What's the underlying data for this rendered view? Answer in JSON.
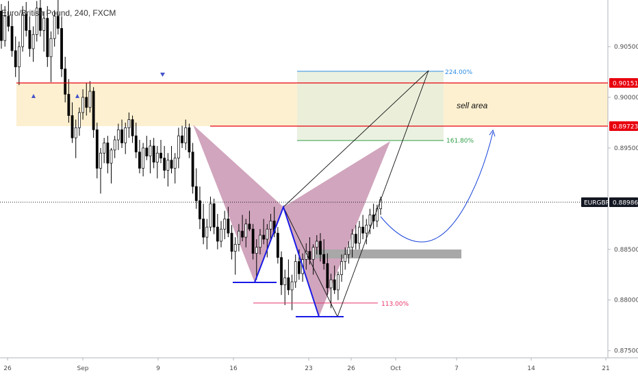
{
  "symbol_title": "Euro/British Pound, 240, FXCM",
  "annotation": "sell area",
  "colors": {
    "up": "#ffffff",
    "down": "#000000",
    "zone": "#fdf0d0",
    "resistance": "#e8000d",
    "bat_fill": "#c995b2",
    "pattern": "#1919e6",
    "projection": "#1742d8",
    "fib_224": "#2d8de3",
    "fib_1618": "#2e9e46",
    "fib_113": "#e8326a",
    "demand": "#a8a8a8",
    "last_price": "#131722"
  },
  "chart_data": {
    "type": "candlestick",
    "title": "Euro/British Pound, 240, FXCM",
    "symbol": "EURGBP",
    "last_price": 0.88986,
    "ylim": [
      0.8743,
      0.9096
    ],
    "y_ticks": [
      "0.90500",
      "0.90000",
      "0.89500",
      "0.88500",
      "0.88000",
      "0.87500"
    ],
    "x_ticks": [
      "26",
      "Sep",
      "9",
      "16",
      "23",
      "26",
      "Oct",
      "7",
      "14",
      "21"
    ],
    "price_tags": [
      {
        "label": "0.90151",
        "value": 0.90151
      },
      {
        "label": "0.89723",
        "value": 0.89723
      },
      {
        "label": "EURGBP",
        "value": 0.88986,
        "kind": "symbol"
      },
      {
        "label": "0.88986",
        "value": 0.88986
      }
    ],
    "zones": [
      {
        "name": "sell area",
        "from": 0.89723,
        "to": 0.90151
      }
    ],
    "fib_levels": [
      {
        "label": "224.00%",
        "value": 0.9025
      },
      {
        "label": "161.80%",
        "value": 0.8961
      },
      {
        "label": "113.00%",
        "value": 0.8801
      }
    ],
    "candles": [
      [
        0.9085,
        0.9092,
        0.9048,
        0.9056
      ],
      [
        0.9056,
        0.909,
        0.905,
        0.908
      ],
      [
        0.908,
        0.9095,
        0.9065,
        0.907
      ],
      [
        0.907,
        0.9082,
        0.904,
        0.9046
      ],
      [
        0.9046,
        0.906,
        0.902,
        0.903
      ],
      [
        0.903,
        0.9055,
        0.9012,
        0.905
      ],
      [
        0.905,
        0.909,
        0.9045,
        0.9082
      ],
      [
        0.9082,
        0.9094,
        0.906,
        0.9066
      ],
      [
        0.9066,
        0.908,
        0.904,
        0.9048
      ],
      [
        0.9048,
        0.907,
        0.9035,
        0.9062
      ],
      [
        0.9062,
        0.9095,
        0.9055,
        0.9088
      ],
      [
        0.9088,
        0.9096,
        0.906,
        0.9066
      ],
      [
        0.9066,
        0.9085,
        0.9045,
        0.9078
      ],
      [
        0.9078,
        0.909,
        0.903,
        0.904
      ],
      [
        0.904,
        0.9065,
        0.9015,
        0.9058
      ],
      [
        0.9058,
        0.9086,
        0.905,
        0.908
      ],
      [
        0.908,
        0.9096,
        0.9062,
        0.9068
      ],
      [
        0.9068,
        0.908,
        0.902,
        0.9028
      ],
      [
        0.9028,
        0.904,
        0.8995,
        0.9003
      ],
      [
        0.9003,
        0.9018,
        0.8975,
        0.8982
      ],
      [
        0.8982,
        0.8995,
        0.8955,
        0.896
      ],
      [
        0.896,
        0.8978,
        0.894,
        0.897
      ],
      [
        0.897,
        0.899,
        0.8962,
        0.8985
      ],
      [
        0.8985,
        0.9008,
        0.8978,
        0.9
      ],
      [
        0.9,
        0.9014,
        0.8982,
        0.899
      ],
      [
        0.899,
        0.9016,
        0.8985,
        0.9006
      ],
      [
        0.9006,
        0.901,
        0.896,
        0.8968
      ],
      [
        0.8968,
        0.8975,
        0.892,
        0.893
      ],
      [
        0.893,
        0.895,
        0.8905,
        0.8945
      ],
      [
        0.8945,
        0.896,
        0.8935,
        0.8955
      ],
      [
        0.8955,
        0.8962,
        0.8925,
        0.8935
      ],
      [
        0.8935,
        0.895,
        0.8915,
        0.8948
      ],
      [
        0.8948,
        0.8962,
        0.894,
        0.8958
      ],
      [
        0.8958,
        0.8974,
        0.8948,
        0.8968
      ],
      [
        0.8968,
        0.8978,
        0.895,
        0.8955
      ],
      [
        0.8955,
        0.8975,
        0.8944,
        0.897
      ],
      [
        0.897,
        0.8985,
        0.896,
        0.8978
      ],
      [
        0.8978,
        0.8982,
        0.8955,
        0.8962
      ],
      [
        0.8962,
        0.8975,
        0.894,
        0.8946
      ],
      [
        0.8946,
        0.8958,
        0.8925,
        0.893
      ],
      [
        0.893,
        0.8955,
        0.8922,
        0.895
      ],
      [
        0.895,
        0.8962,
        0.8938,
        0.8942
      ],
      [
        0.8942,
        0.8958,
        0.8925,
        0.8952
      ],
      [
        0.8952,
        0.896,
        0.893,
        0.8936
      ],
      [
        0.8936,
        0.8952,
        0.892,
        0.8945
      ],
      [
        0.8945,
        0.8958,
        0.8935,
        0.894
      ],
      [
        0.894,
        0.8952,
        0.892,
        0.8928
      ],
      [
        0.8928,
        0.8945,
        0.8912,
        0.8938
      ],
      [
        0.8938,
        0.8952,
        0.8925,
        0.893
      ],
      [
        0.893,
        0.8945,
        0.8915,
        0.894
      ],
      [
        0.894,
        0.897,
        0.893,
        0.8962
      ],
      [
        0.8962,
        0.8972,
        0.895,
        0.8955
      ],
      [
        0.8955,
        0.8978,
        0.8948,
        0.897
      ],
      [
        0.897,
        0.8974,
        0.894,
        0.8946
      ],
      [
        0.8946,
        0.8955,
        0.8905,
        0.8912
      ],
      [
        0.8912,
        0.893,
        0.889,
        0.8898
      ],
      [
        0.8898,
        0.8912,
        0.887,
        0.888
      ],
      [
        0.888,
        0.8895,
        0.8855,
        0.8862
      ],
      [
        0.8862,
        0.888,
        0.885,
        0.8872
      ],
      [
        0.8872,
        0.8902,
        0.8868,
        0.8895
      ],
      [
        0.8895,
        0.89,
        0.8865,
        0.8872
      ],
      [
        0.8872,
        0.8885,
        0.885,
        0.8858
      ],
      [
        0.8858,
        0.8878,
        0.8852,
        0.887
      ],
      [
        0.887,
        0.8888,
        0.886,
        0.888
      ],
      [
        0.888,
        0.8892,
        0.8862,
        0.8866
      ],
      [
        0.8866,
        0.8874,
        0.884,
        0.8848
      ],
      [
        0.8848,
        0.8862,
        0.8825,
        0.8855
      ],
      [
        0.8855,
        0.8875,
        0.8848,
        0.8868
      ],
      [
        0.8868,
        0.8884,
        0.8858,
        0.8862
      ],
      [
        0.8862,
        0.888,
        0.8852,
        0.8875
      ],
      [
        0.8875,
        0.8888,
        0.8868,
        0.887
      ],
      [
        0.887,
        0.8875,
        0.884,
        0.8846
      ],
      [
        0.8846,
        0.886,
        0.882,
        0.8852
      ],
      [
        0.8852,
        0.887,
        0.8845,
        0.8864
      ],
      [
        0.8864,
        0.888,
        0.8855,
        0.886
      ],
      [
        0.886,
        0.8875,
        0.8842,
        0.887
      ],
      [
        0.887,
        0.8885,
        0.886,
        0.8878
      ],
      [
        0.8878,
        0.8892,
        0.8862,
        0.8866
      ],
      [
        0.8866,
        0.8872,
        0.8836,
        0.8842
      ],
      [
        0.8842,
        0.8848,
        0.8805,
        0.8815
      ],
      [
        0.8815,
        0.883,
        0.8795,
        0.8822
      ],
      [
        0.8822,
        0.884,
        0.8805,
        0.881
      ],
      [
        0.881,
        0.8825,
        0.879,
        0.8818
      ],
      [
        0.8818,
        0.8845,
        0.8812,
        0.8838
      ],
      [
        0.8838,
        0.885,
        0.882,
        0.8826
      ],
      [
        0.8826,
        0.8846,
        0.8818,
        0.884
      ],
      [
        0.884,
        0.8856,
        0.883,
        0.8848
      ],
      [
        0.8848,
        0.8862,
        0.8835,
        0.884
      ],
      [
        0.884,
        0.8855,
        0.8825,
        0.8852
      ],
      [
        0.8852,
        0.8864,
        0.8845,
        0.8858
      ],
      [
        0.8858,
        0.8866,
        0.8838,
        0.8845
      ],
      [
        0.8845,
        0.886,
        0.883,
        0.8836
      ],
      [
        0.8836,
        0.8846,
        0.8805,
        0.8812
      ],
      [
        0.8812,
        0.8826,
        0.8792,
        0.882
      ],
      [
        0.882,
        0.8834,
        0.8806,
        0.881
      ],
      [
        0.881,
        0.8828,
        0.88,
        0.8825
      ],
      [
        0.8825,
        0.8845,
        0.8818,
        0.8838
      ],
      [
        0.8838,
        0.8852,
        0.883,
        0.8845
      ],
      [
        0.8845,
        0.8858,
        0.8836,
        0.8852
      ],
      [
        0.8852,
        0.887,
        0.8842,
        0.8865
      ],
      [
        0.8865,
        0.8874,
        0.885,
        0.8856
      ],
      [
        0.8856,
        0.8878,
        0.885,
        0.8872
      ],
      [
        0.8872,
        0.8884,
        0.886,
        0.8866
      ],
      [
        0.8866,
        0.888,
        0.8855,
        0.8874
      ],
      [
        0.8874,
        0.889,
        0.8865,
        0.8884
      ],
      [
        0.8884,
        0.8895,
        0.887,
        0.8878
      ],
      [
        0.8878,
        0.8894,
        0.8872,
        0.889
      ],
      [
        0.889,
        0.8902,
        0.8884,
        0.8899
      ]
    ]
  }
}
